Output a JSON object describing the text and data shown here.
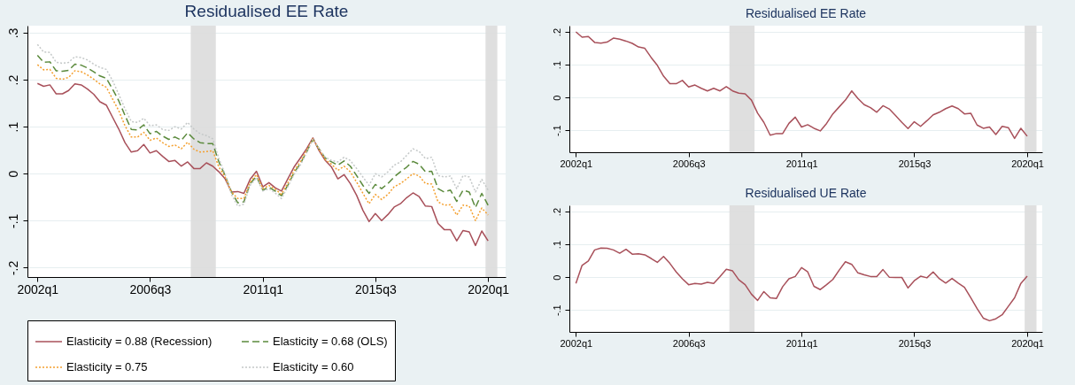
{
  "chart_data": [
    {
      "type": "line",
      "title": "Residualised EE Rate",
      "grid": "y",
      "legend": "bottom",
      "x": [
        "2002-01",
        "2002-04",
        "2002-07",
        "2002-10",
        "2003-01",
        "2003-04",
        "2003-07",
        "2003-10",
        "2004-01",
        "2004-04",
        "2004-07",
        "2004-10",
        "2005-01",
        "2005-04",
        "2005-07",
        "2005-10",
        "2006-01",
        "2006-04",
        "2006-07",
        "2006-10",
        "2007-01",
        "2007-04",
        "2007-07",
        "2007-10",
        "2008-01",
        "2008-04",
        "2008-07",
        "2008-10",
        "2009-01",
        "2009-04",
        "2009-07",
        "2009-10",
        "2010-01",
        "2010-04",
        "2010-07",
        "2010-10",
        "2011-01",
        "2011-04",
        "2011-07",
        "2011-10",
        "2012-01",
        "2012-04",
        "2012-07",
        "2012-10",
        "2013-01",
        "2013-04",
        "2013-07",
        "2013-10",
        "2014-01",
        "2014-04",
        "2014-07",
        "2014-10",
        "2015-01",
        "2015-04",
        "2015-07",
        "2015-10",
        "2016-01",
        "2016-04",
        "2016-07",
        "2016-10",
        "2017-01",
        "2017-04",
        "2017-07",
        "2017-10",
        "2018-01",
        "2018-04",
        "2018-07",
        "2018-10",
        "2019-01",
        "2019-04",
        "2019-07",
        "2019-10",
        "2020-01"
      ],
      "xlim": [
        "2001-08-08",
        "2020-09-13"
      ],
      "xticks": [
        {
          "value": "2002-01",
          "label": "2002q1"
        },
        {
          "value": "2006-07",
          "label": "2006q3"
        },
        {
          "value": "2011-01",
          "label": "2011q1"
        },
        {
          "value": "2015-07",
          "label": "2015q3"
        },
        {
          "value": "2020-01",
          "label": "2020q1"
        }
      ],
      "ylim": [
        -0.22,
        0.315
      ],
      "yticks": [
        {
          "value": -0.2,
          "label": "-.2"
        },
        {
          "value": -0.1,
          "label": "-.1"
        },
        {
          "value": 0,
          "label": "0"
        },
        {
          "value": 0.1,
          "label": ".1"
        },
        {
          "value": 0.2,
          "label": ".2"
        },
        {
          "value": 0.3,
          "label": ".3"
        }
      ],
      "bands": [
        {
          "axis": "x",
          "from": "2008-02-15",
          "to": "2009-02-15",
          "color": "#dcdcdc"
        },
        {
          "axis": "x",
          "from": "2019-11-25",
          "to": "2020-05-15",
          "color": "#dcdcdc"
        }
      ],
      "series": [
        {
          "name": "Elasticity = 0.88 (Recession)",
          "color": "#a8505a",
          "line_style": "solid",
          "values": [
            0.192,
            0.186,
            0.189,
            0.17,
            0.17,
            0.177,
            0.191,
            0.189,
            0.18,
            0.169,
            0.153,
            0.146,
            0.12,
            0.095,
            0.066,
            0.046,
            0.049,
            0.062,
            0.044,
            0.049,
            0.037,
            0.026,
            0.028,
            0.016,
            0.025,
            0.011,
            0.011,
            0.023,
            0.016,
            0.004,
            -0.011,
            -0.039,
            -0.038,
            -0.042,
            -0.012,
            0.005,
            -0.028,
            -0.019,
            -0.03,
            -0.037,
            -0.011,
            0.014,
            0.033,
            0.053,
            0.076,
            0.049,
            0.028,
            0.014,
            -0.011,
            -0.002,
            -0.021,
            -0.046,
            -0.078,
            -0.102,
            -0.085,
            -0.1,
            -0.087,
            -0.071,
            -0.064,
            -0.051,
            -0.041,
            -0.049,
            -0.069,
            -0.07,
            -0.106,
            -0.119,
            -0.119,
            -0.143,
            -0.121,
            -0.124,
            -0.153,
            -0.122,
            -0.143
          ]
        },
        {
          "name": "Elasticity = 0.68 (OLS)",
          "color": "#5b8a3c",
          "line_style": "dashed",
          "values": [
            0.252,
            0.237,
            0.238,
            0.219,
            0.218,
            0.22,
            0.233,
            0.231,
            0.225,
            0.217,
            0.208,
            0.203,
            0.18,
            0.155,
            0.124,
            0.094,
            0.093,
            0.104,
            0.085,
            0.09,
            0.08,
            0.073,
            0.078,
            0.071,
            0.087,
            0.074,
            0.066,
            0.064,
            0.064,
            0.025,
            -0.004,
            -0.039,
            -0.062,
            -0.06,
            -0.021,
            -0.006,
            -0.035,
            -0.029,
            -0.037,
            -0.047,
            -0.025,
            0.002,
            0.021,
            0.046,
            0.073,
            0.053,
            0.033,
            0.025,
            0.018,
            0.027,
            0.016,
            -0.004,
            -0.025,
            -0.042,
            -0.023,
            -0.032,
            -0.021,
            -0.007,
            0.004,
            0.014,
            0.026,
            0.02,
            0.004,
            0.005,
            -0.032,
            -0.039,
            -0.035,
            -0.059,
            -0.035,
            -0.039,
            -0.072,
            -0.042,
            -0.067
          ]
        },
        {
          "name": "Elasticity = 0.75",
          "color": "#f4a030",
          "line_style": "dotted",
          "values": [
            0.232,
            0.221,
            0.222,
            0.203,
            0.201,
            0.205,
            0.219,
            0.217,
            0.21,
            0.201,
            0.191,
            0.184,
            0.159,
            0.134,
            0.102,
            0.078,
            0.078,
            0.088,
            0.071,
            0.076,
            0.066,
            0.058,
            0.061,
            0.053,
            0.067,
            0.052,
            0.046,
            0.047,
            0.049,
            0.014,
            -0.007,
            -0.039,
            -0.053,
            -0.053,
            -0.018,
            -0.002,
            -0.032,
            -0.025,
            -0.033,
            -0.044,
            -0.02,
            0.006,
            0.025,
            0.049,
            0.074,
            0.052,
            0.03,
            0.02,
            0.007,
            0.016,
            0.004,
            -0.018,
            -0.042,
            -0.064,
            -0.044,
            -0.055,
            -0.044,
            -0.028,
            -0.021,
            -0.011,
            0,
            -0.005,
            -0.021,
            -0.022,
            -0.06,
            -0.067,
            -0.066,
            -0.088,
            -0.067,
            -0.069,
            -0.1,
            -0.073,
            -0.088
          ]
        },
        {
          "name": "Elasticity = 0.60",
          "color": "#c4c8c8",
          "line_style": "dotted",
          "values": [
            0.275,
            0.259,
            0.258,
            0.237,
            0.235,
            0.237,
            0.249,
            0.247,
            0.242,
            0.233,
            0.226,
            0.222,
            0.198,
            0.169,
            0.138,
            0.111,
            0.109,
            0.118,
            0.102,
            0.104,
            0.094,
            0.092,
            0.1,
            0.095,
            0.109,
            0.095,
            0.085,
            0.081,
            0.074,
            0.032,
            -0.001,
            -0.044,
            -0.069,
            -0.065,
            -0.025,
            -0.009,
            -0.037,
            -0.032,
            -0.041,
            -0.053,
            -0.028,
            -0.002,
            0.018,
            0.044,
            0.073,
            0.054,
            0.035,
            0.028,
            0.025,
            0.035,
            0.028,
            0.011,
            -0.007,
            -0.025,
            0,
            -0.007,
            0.004,
            0.018,
            0.025,
            0.039,
            0.053,
            0.047,
            0.032,
            0.035,
            -0.004,
            -0.007,
            -0.005,
            -0.032,
            -0.004,
            -0.007,
            -0.039,
            -0.012,
            -0.035
          ]
        }
      ]
    },
    {
      "type": "line",
      "title": "Residualised EE Rate",
      "grid": "y",
      "x": [
        "2002-01",
        "2002-04",
        "2002-07",
        "2002-10",
        "2003-01",
        "2003-04",
        "2003-07",
        "2003-10",
        "2004-01",
        "2004-04",
        "2004-07",
        "2004-10",
        "2005-01",
        "2005-04",
        "2005-07",
        "2005-10",
        "2006-01",
        "2006-04",
        "2006-07",
        "2006-10",
        "2007-01",
        "2007-04",
        "2007-07",
        "2007-10",
        "2008-01",
        "2008-04",
        "2008-07",
        "2008-10",
        "2009-01",
        "2009-04",
        "2009-07",
        "2009-10",
        "2010-01",
        "2010-04",
        "2010-07",
        "2010-10",
        "2011-01",
        "2011-04",
        "2011-07",
        "2011-10",
        "2012-01",
        "2012-04",
        "2012-07",
        "2012-10",
        "2013-01",
        "2013-04",
        "2013-07",
        "2013-10",
        "2014-01",
        "2014-04",
        "2014-07",
        "2014-10",
        "2015-01",
        "2015-04",
        "2015-07",
        "2015-10",
        "2016-01",
        "2016-04",
        "2016-07",
        "2016-10",
        "2017-01",
        "2017-04",
        "2017-07",
        "2017-10",
        "2018-01",
        "2018-04",
        "2018-07",
        "2018-10",
        "2019-01",
        "2019-04",
        "2019-07",
        "2019-10",
        "2020-01"
      ],
      "xlim": [
        "2001-09-28",
        "2020-08-07"
      ],
      "xticks": [
        {
          "value": "2002-01",
          "label": "2002q1"
        },
        {
          "value": "2006-07",
          "label": "2006q3"
        },
        {
          "value": "2011-01",
          "label": "2011q1"
        },
        {
          "value": "2015-07",
          "label": "2015q3"
        },
        {
          "value": "2020-01",
          "label": "2020q1"
        }
      ],
      "ylim": [
        -0.167,
        0.219
      ],
      "yticks": [
        {
          "value": -0.1,
          "label": "-.1"
        },
        {
          "value": 0,
          "label": "0"
        },
        {
          "value": 0.1,
          "label": ".1"
        },
        {
          "value": 0.2,
          "label": ".2"
        }
      ],
      "bands": [
        {
          "axis": "x",
          "from": "2008-02-15",
          "to": "2009-02-15",
          "color": "#dcdcdc"
        },
        {
          "axis": "x",
          "from": "2019-11-25",
          "to": "2020-05-15",
          "color": "#dcdcdc"
        }
      ],
      "series": [
        {
          "color": "#a8505a",
          "line_style": "solid",
          "values": [
            0.2,
            0.184,
            0.186,
            0.168,
            0.166,
            0.169,
            0.181,
            0.178,
            0.172,
            0.165,
            0.154,
            0.15,
            0.122,
            0.098,
            0.065,
            0.042,
            0.042,
            0.052,
            0.032,
            0.038,
            0.028,
            0.02,
            0.028,
            0.02,
            0.033,
            0.02,
            0.013,
            0.011,
            -0.008,
            -0.048,
            -0.076,
            -0.115,
            -0.11,
            -0.11,
            -0.079,
            -0.06,
            -0.09,
            -0.083,
            -0.094,
            -0.102,
            -0.079,
            -0.05,
            -0.029,
            -0.008,
            0.02,
            -0.003,
            -0.022,
            -0.031,
            -0.045,
            -0.025,
            -0.035,
            -0.055,
            -0.076,
            -0.095,
            -0.074,
            -0.088,
            -0.071,
            -0.053,
            -0.045,
            -0.034,
            -0.026,
            -0.034,
            -0.05,
            -0.048,
            -0.084,
            -0.094,
            -0.09,
            -0.113,
            -0.088,
            -0.092,
            -0.125,
            -0.094,
            -0.118
          ]
        }
      ]
    },
    {
      "type": "line",
      "title": "Residualised UE Rate",
      "grid": "y",
      "x": [
        "2002-01",
        "2002-04",
        "2002-07",
        "2002-10",
        "2003-01",
        "2003-04",
        "2003-07",
        "2003-10",
        "2004-01",
        "2004-04",
        "2004-07",
        "2004-10",
        "2005-01",
        "2005-04",
        "2005-07",
        "2005-10",
        "2006-01",
        "2006-04",
        "2006-07",
        "2006-10",
        "2007-01",
        "2007-04",
        "2007-07",
        "2007-10",
        "2008-01",
        "2008-04",
        "2008-07",
        "2008-10",
        "2009-01",
        "2009-04",
        "2009-07",
        "2009-10",
        "2010-01",
        "2010-04",
        "2010-07",
        "2010-10",
        "2011-01",
        "2011-04",
        "2011-07",
        "2011-10",
        "2012-01",
        "2012-04",
        "2012-07",
        "2012-10",
        "2013-01",
        "2013-04",
        "2013-07",
        "2013-10",
        "2014-01",
        "2014-04",
        "2014-07",
        "2014-10",
        "2015-01",
        "2015-04",
        "2015-07",
        "2015-10",
        "2016-01",
        "2016-04",
        "2016-07",
        "2016-10",
        "2017-01",
        "2017-04",
        "2017-07",
        "2017-10",
        "2018-01",
        "2018-04",
        "2018-07",
        "2018-10",
        "2019-01",
        "2019-04",
        "2019-07",
        "2019-10",
        "2020-01"
      ],
      "xlim": [
        "2001-09-28",
        "2020-08-07"
      ],
      "xticks": [
        {
          "value": "2002-01",
          "label": "2002q1"
        },
        {
          "value": "2006-07",
          "label": "2006q3"
        },
        {
          "value": "2011-01",
          "label": "2011q1"
        },
        {
          "value": "2015-07",
          "label": "2015q3"
        },
        {
          "value": "2020-01",
          "label": "2020q1"
        }
      ],
      "ylim": [
        -0.167,
        0.219
      ],
      "yticks": [
        {
          "value": -0.1,
          "label": "-.1"
        },
        {
          "value": 0,
          "label": "0"
        },
        {
          "value": 0.1,
          "label": ".1"
        },
        {
          "value": 0.2,
          "label": ".2"
        }
      ],
      "bands": [
        {
          "axis": "x",
          "from": "2008-02-15",
          "to": "2009-02-15",
          "color": "#dcdcdc"
        },
        {
          "axis": "x",
          "from": "2019-11-25",
          "to": "2020-05-15",
          "color": "#dcdcdc"
        }
      ],
      "series": [
        {
          "color": "#a8505a",
          "line_style": "solid",
          "values": [
            -0.019,
            0.036,
            0.049,
            0.083,
            0.089,
            0.088,
            0.083,
            0.073,
            0.085,
            0.07,
            0.071,
            0.068,
            0.057,
            0.045,
            0.063,
            0.042,
            0.016,
            -0.005,
            -0.023,
            -0.019,
            -0.021,
            -0.016,
            -0.019,
            0.002,
            0.024,
            0.019,
            -0.008,
            -0.023,
            -0.052,
            -0.071,
            -0.044,
            -0.063,
            -0.065,
            -0.029,
            -0.005,
            0.002,
            0.029,
            0.016,
            -0.028,
            -0.038,
            -0.023,
            -0.007,
            0.021,
            0.047,
            0.039,
            0.013,
            0.007,
            0.002,
            0.002,
            0.023,
            0,
            -0.001,
            -0.001,
            -0.033,
            -0.011,
            0.003,
            -0.002,
            0.016,
            -0.005,
            -0.018,
            -0.004,
            -0.018,
            -0.031,
            -0.063,
            -0.096,
            -0.125,
            -0.133,
            -0.127,
            -0.115,
            -0.089,
            -0.063,
            -0.019,
            0.003
          ]
        }
      ]
    }
  ]
}
